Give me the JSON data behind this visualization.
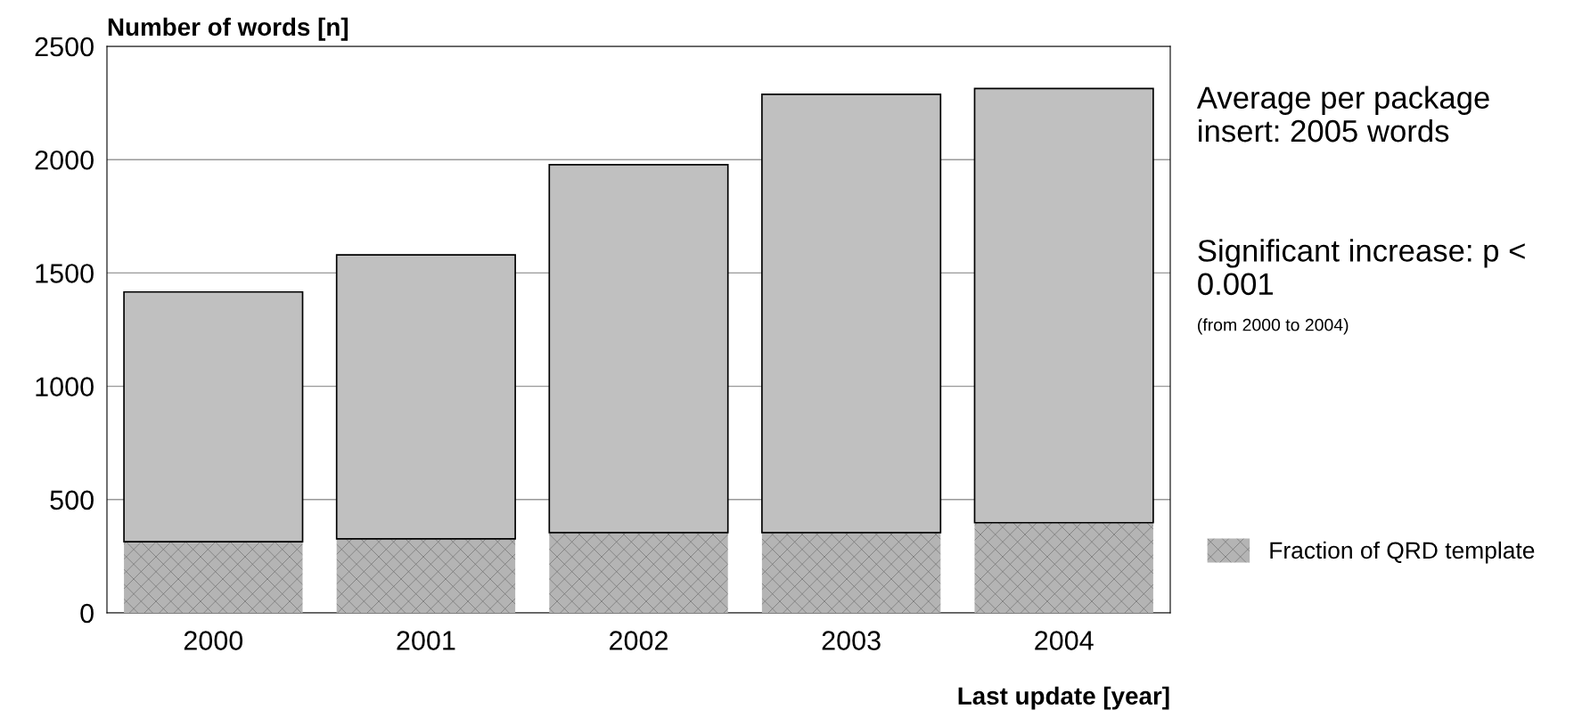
{
  "chart_data": {
    "type": "bar",
    "stacked": true,
    "xlabel": "Last update [year]",
    "ylabel": "Number of words [n]",
    "categories": [
      "2000",
      "2001",
      "2002",
      "2003",
      "2004"
    ],
    "series": [
      {
        "name": "Fraction of QRD template",
        "color": "#b4b4b4",
        "values": [
          314,
          327,
          354,
          354,
          398
        ]
      },
      {
        "color": "#c0c0c0",
        "values": [
          1102,
          1253,
          1624,
          1934,
          1916
        ]
      }
    ],
    "ylim": [
      0,
      2500
    ],
    "yticks": [
      0,
      500,
      1000,
      1500,
      2000,
      2500
    ],
    "grid": "y",
    "legend": "right",
    "annotations": [
      "Average per package insert: 2005 words",
      "Significant increase: p < 0.001",
      "(from 2000 to 2004)"
    ]
  }
}
